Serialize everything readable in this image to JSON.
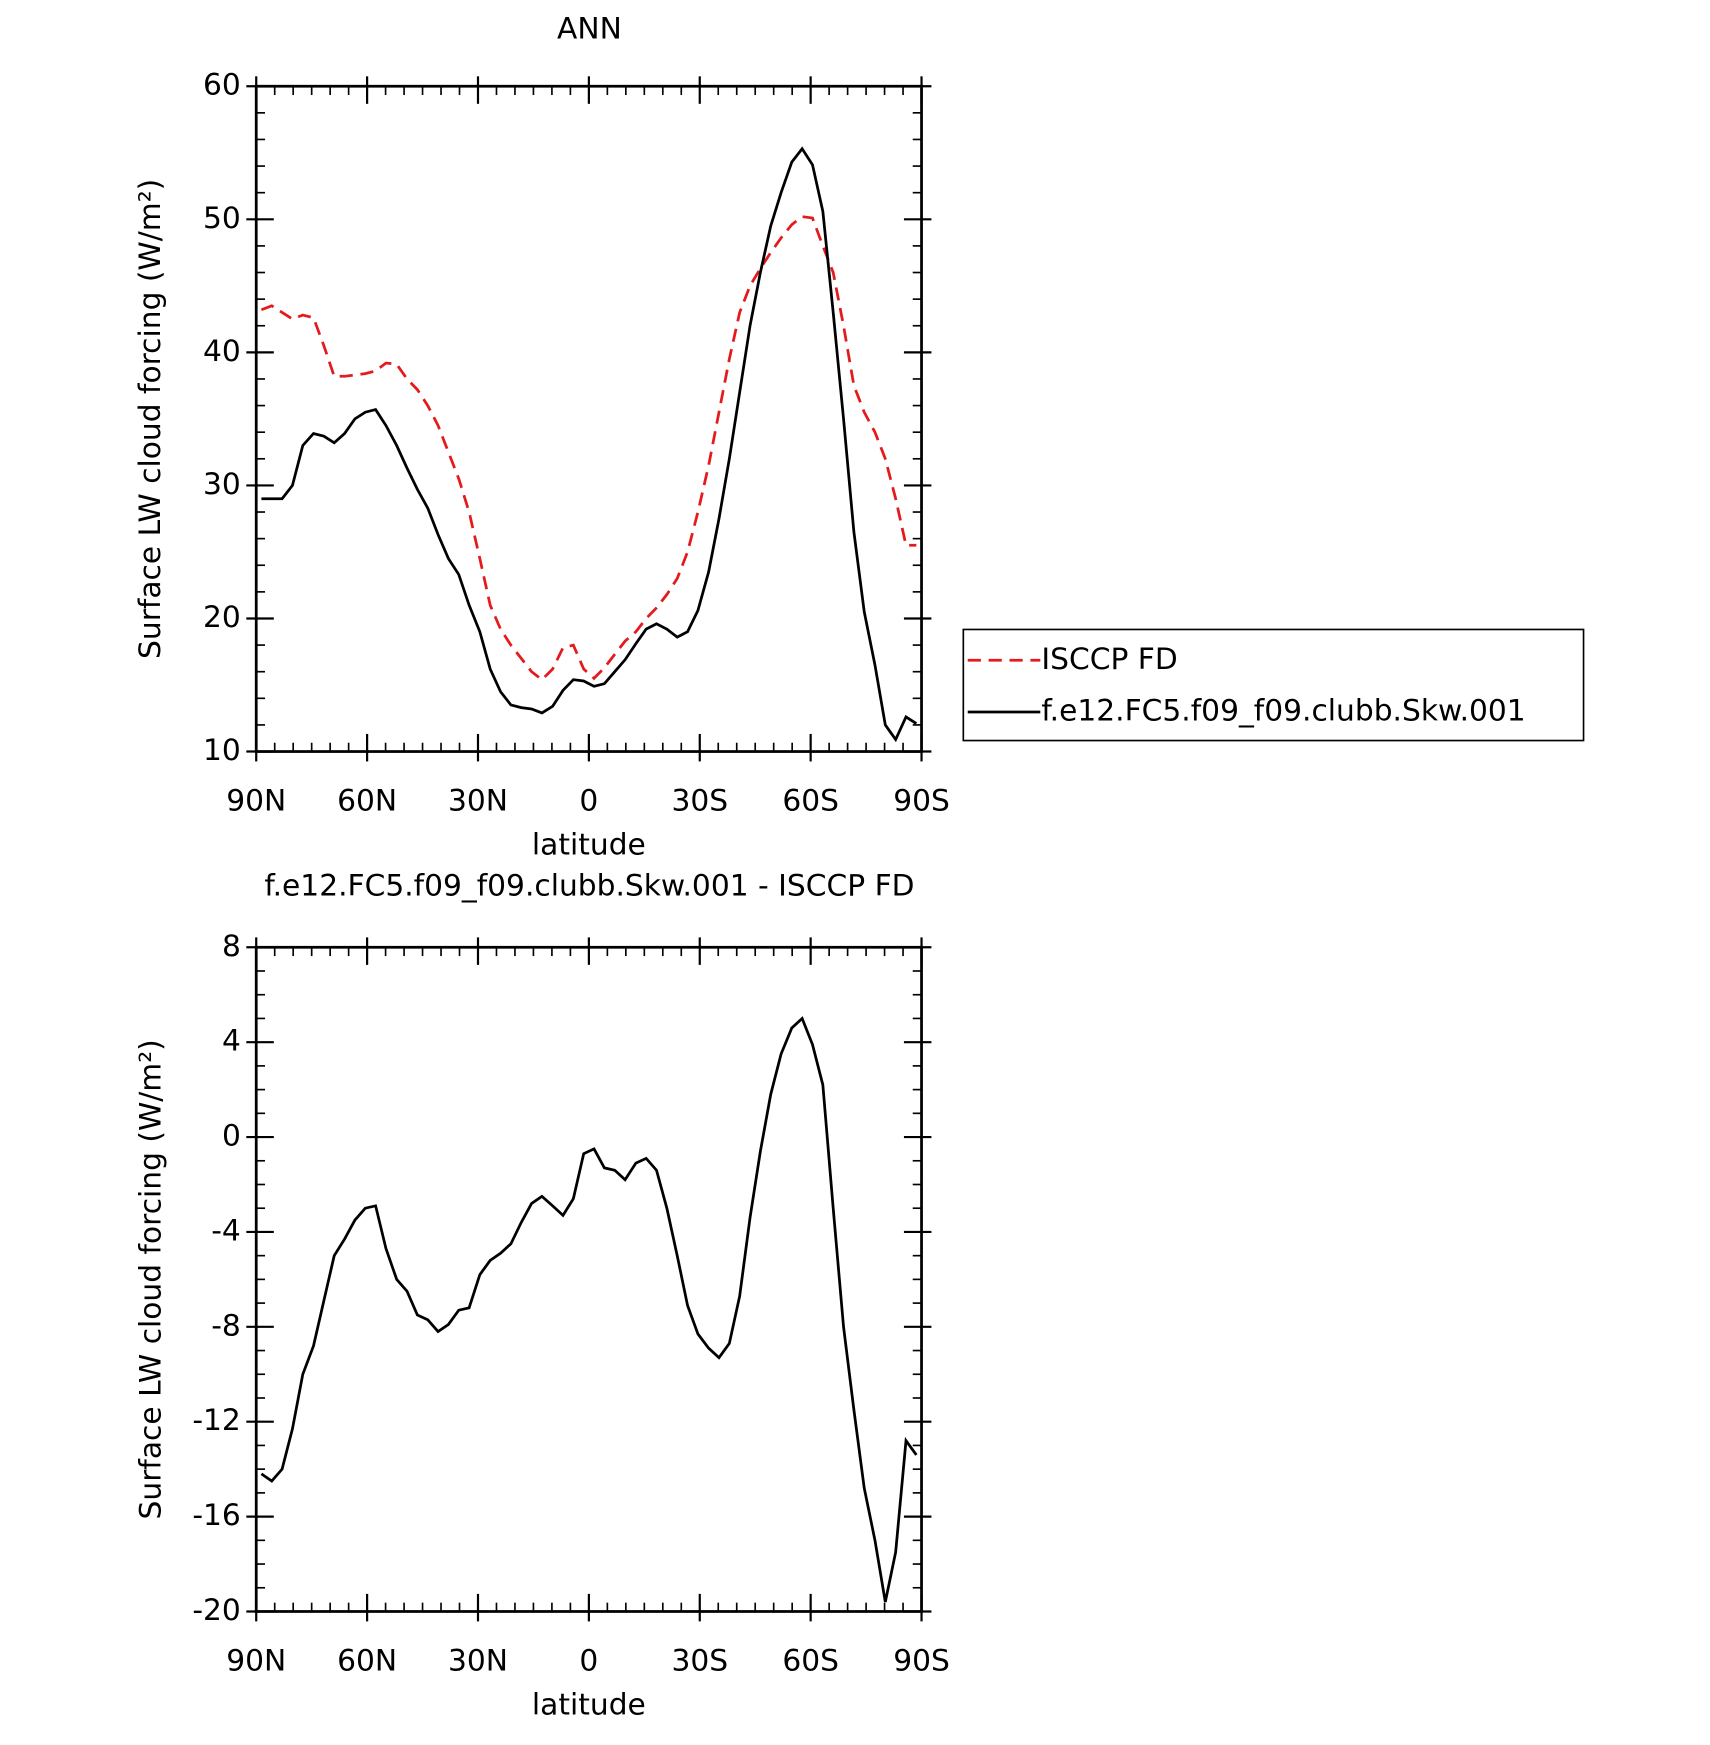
{
  "chart_data": [
    {
      "type": "line",
      "title": "ANN",
      "xlabel": "latitude",
      "ylabel": "Surface LW cloud forcing (W/m²)",
      "x": [
        88.6,
        85.8,
        83.0,
        80.2,
        77.4,
        74.5,
        71.7,
        68.9,
        66.1,
        63.3,
        60.5,
        57.7,
        54.9,
        52.0,
        49.2,
        46.4,
        43.6,
        40.8,
        38.0,
        35.2,
        32.4,
        29.5,
        26.7,
        23.9,
        21.1,
        18.3,
        15.5,
        12.7,
        9.8,
        7.0,
        4.2,
        1.4,
        -1.4,
        -4.2,
        -7.0,
        -9.8,
        -12.7,
        -15.5,
        -18.3,
        -21.1,
        -23.9,
        -26.7,
        -29.5,
        -32.4,
        -35.2,
        -38.0,
        -40.8,
        -43.6,
        -46.4,
        -49.2,
        -52.0,
        -54.9,
        -57.7,
        -60.5,
        -63.3,
        -66.1,
        -68.9,
        -71.7,
        -74.5,
        -77.4,
        -80.2,
        -83.0,
        -85.8,
        -88.6
      ],
      "series": [
        {
          "name": "ISCCP FD",
          "color": "#e41a1c",
          "dash": true,
          "values": [
            43.2,
            43.5,
            43,
            42.5,
            42.8,
            42.6,
            40.5,
            38.2,
            38.2,
            38.3,
            38.4,
            38.6,
            39.2,
            39.1,
            38,
            37.2,
            36,
            34.5,
            32.5,
            30.5,
            28,
            24.5,
            21,
            19.2,
            18,
            17,
            16,
            15.4,
            16.2,
            17.8,
            18,
            16.2,
            15.5,
            16.3,
            17.3,
            18.3,
            19,
            20,
            20.8,
            21.8,
            23,
            25,
            28,
            31.5,
            35.5,
            39.5,
            43,
            45,
            46.3,
            47.5,
            48.6,
            49.6,
            50.2,
            50.1,
            48,
            46,
            42,
            37.5,
            35.5,
            34,
            32,
            29,
            25.5,
            25.5
          ]
        },
        {
          "name": "f.e12.FC5.f09_f09.clubb.Skw.001",
          "color": "#000000",
          "dash": false,
          "values": [
            29,
            29,
            29,
            30,
            33,
            33.9,
            33.7,
            33.2,
            33.9,
            35,
            35.5,
            35.7,
            34.5,
            33,
            31.3,
            29.7,
            28.3,
            26.3,
            24.5,
            23.3,
            21,
            19,
            16.2,
            14.5,
            13.5,
            13.3,
            13.2,
            12.9,
            13.4,
            14.6,
            15.4,
            15.3,
            14.9,
            15.1,
            16,
            16.9,
            18.1,
            19.2,
            19.6,
            19.2,
            18.6,
            19,
            20.6,
            23.5,
            27.5,
            32,
            37,
            42,
            46,
            49.5,
            52,
            54.3,
            55.3,
            54.1,
            50.6,
            43,
            35,
            26.5,
            20.5,
            16.5,
            12,
            10.9,
            12.6,
            12.1
          ]
        }
      ],
      "xlim": [
        90,
        -90
      ],
      "xticks": [
        {
          "value": 90,
          "label": "90N"
        },
        {
          "value": 60,
          "label": "60N"
        },
        {
          "value": 30,
          "label": "30N"
        },
        0,
        {
          "value": -30,
          "label": "30S"
        },
        {
          "value": -60,
          "label": "60S"
        },
        {
          "value": -90,
          "label": "90S"
        }
      ],
      "ylim": [
        10,
        60
      ],
      "yticks": [
        10,
        20,
        30,
        40,
        50,
        60
      ],
      "legend": "right"
    },
    {
      "type": "line",
      "title": "f.e12.FC5.f09_f09.clubb.Skw.001 - ISCCP FD",
      "xlabel": "latitude",
      "ylabel": "Surface LW cloud forcing (W/m²)",
      "x": [
        88.6,
        85.8,
        83.0,
        80.2,
        77.4,
        74.5,
        71.7,
        68.9,
        66.1,
        63.3,
        60.5,
        57.7,
        54.9,
        52.0,
        49.2,
        46.4,
        43.6,
        40.8,
        38.0,
        35.2,
        32.4,
        29.5,
        26.7,
        23.9,
        21.1,
        18.3,
        15.5,
        12.7,
        9.8,
        7.0,
        4.2,
        1.4,
        -1.4,
        -4.2,
        -7.0,
        -9.8,
        -12.7,
        -15.5,
        -18.3,
        -21.1,
        -23.9,
        -26.7,
        -29.5,
        -32.4,
        -35.2,
        -38.0,
        -40.8,
        -43.6,
        -46.4,
        -49.2,
        -52.0,
        -54.9,
        -57.7,
        -60.5,
        -63.3,
        -66.1,
        -68.9,
        -71.7,
        -74.5,
        -77.4,
        -80.2,
        -83.0,
        -85.8,
        -88.6
      ],
      "color": "#000000",
      "values": [
        -14.2,
        -14.5,
        -14,
        -12.3,
        -10,
        -8.8,
        -6.9,
        -5,
        -4.3,
        -3.5,
        -3,
        -2.9,
        -4.7,
        -6,
        -6.5,
        -7.5,
        -7.7,
        -8.2,
        -7.9,
        -7.3,
        -7.2,
        -5.8,
        -5.2,
        -4.9,
        -4.5,
        -3.6,
        -2.8,
        -2.5,
        -2.9,
        -3.3,
        -2.6,
        -0.7,
        -0.5,
        -1.3,
        -1.4,
        -1.8,
        -1.1,
        -0.9,
        -1.4,
        -3,
        -5,
        -7.1,
        -8.3,
        -8.9,
        -9.3,
        -8.7,
        -6.7,
        -3.4,
        -0.6,
        1.8,
        3.5,
        4.6,
        5,
        3.9,
        2.2,
        -3,
        -8,
        -11.5,
        -14.8,
        -17,
        -19.6,
        -17.5,
        -12.8,
        -13.4
      ],
      "xlim": [
        90,
        -90
      ],
      "xticks": [
        {
          "value": 90,
          "label": "90N"
        },
        {
          "value": 60,
          "label": "60N"
        },
        {
          "value": 30,
          "label": "30N"
        },
        0,
        {
          "value": -30,
          "label": "30S"
        },
        {
          "value": -60,
          "label": "60S"
        },
        {
          "value": -90,
          "label": "90S"
        }
      ],
      "ylim": [
        -20,
        8
      ],
      "yticks": [
        -20,
        -16,
        -12,
        -8,
        -4,
        0,
        4,
        8
      ]
    }
  ]
}
